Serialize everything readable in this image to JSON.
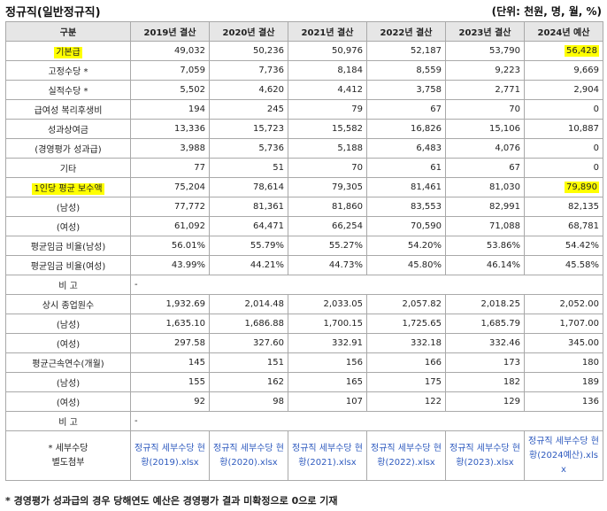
{
  "title": "정규직(일반정규직)",
  "unit": "(단위: 천원, 명, 월, %)",
  "columns": [
    "구분",
    "2019년 결산",
    "2020년 결산",
    "2021년 결산",
    "2022년 결산",
    "2023년 결산",
    "2024년 예산"
  ],
  "rows": [
    {
      "label": "기본급",
      "values": [
        "49,032",
        "50,236",
        "50,976",
        "52,187",
        "53,790",
        "56,428"
      ]
    },
    {
      "label": "고정수당 *",
      "values": [
        "7,059",
        "7,736",
        "8,184",
        "8,559",
        "9,223",
        "9,669"
      ]
    },
    {
      "label": "실적수당 *",
      "values": [
        "5,502",
        "4,620",
        "4,412",
        "3,758",
        "2,771",
        "2,904"
      ]
    },
    {
      "label": "급여성 복리후생비",
      "values": [
        "194",
        "245",
        "79",
        "67",
        "70",
        "0"
      ]
    },
    {
      "label": "성과상여금",
      "values": [
        "13,336",
        "15,723",
        "15,582",
        "16,826",
        "15,106",
        "10,887"
      ]
    },
    {
      "label": "(경영평가 성과급)",
      "values": [
        "3,988",
        "5,736",
        "5,188",
        "6,483",
        "4,076",
        "0"
      ]
    },
    {
      "label": "기타",
      "values": [
        "77",
        "51",
        "70",
        "61",
        "67",
        "0"
      ]
    },
    {
      "label": "1인당 평균 보수액",
      "values": [
        "75,204",
        "78,614",
        "79,305",
        "81,461",
        "81,030",
        "79,890"
      ]
    },
    {
      "label": "(남성)",
      "values": [
        "77,772",
        "81,361",
        "81,860",
        "83,553",
        "82,991",
        "82,135"
      ]
    },
    {
      "label": "(여성)",
      "values": [
        "61,092",
        "64,471",
        "66,254",
        "70,590",
        "71,088",
        "68,781"
      ]
    },
    {
      "label": "평균임금 비율(남성)",
      "values": [
        "56.01%",
        "55.79%",
        "55.27%",
        "54.20%",
        "53.86%",
        "54.42%"
      ]
    },
    {
      "label": "평균임금 비율(여성)",
      "values": [
        "43.99%",
        "44.21%",
        "44.73%",
        "45.80%",
        "46.14%",
        "45.58%"
      ]
    },
    {
      "label": "비 고",
      "remark": "-"
    },
    {
      "label": "상시 종업원수",
      "values": [
        "1,932.69",
        "2,014.48",
        "2,033.05",
        "2,057.82",
        "2,018.25",
        "2,052.00"
      ]
    },
    {
      "label": "(남성)",
      "values": [
        "1,635.10",
        "1,686.88",
        "1,700.15",
        "1,725.65",
        "1,685.79",
        "1,707.00"
      ]
    },
    {
      "label": "(여성)",
      "values": [
        "297.58",
        "327.60",
        "332.91",
        "332.18",
        "332.46",
        "345.00"
      ]
    },
    {
      "label": "평균근속연수(개월)",
      "values": [
        "145",
        "151",
        "156",
        "166",
        "173",
        "180"
      ]
    },
    {
      "label": "(남성)",
      "values": [
        "155",
        "162",
        "165",
        "175",
        "182",
        "189"
      ]
    },
    {
      "label": "(여성)",
      "values": [
        "92",
        "98",
        "107",
        "122",
        "129",
        "136"
      ]
    },
    {
      "label": "비 고",
      "remark": "-"
    }
  ],
  "attachments": {
    "label_line1": "* 세부수당",
    "label_line2": "별도첨부",
    "files": [
      "정규직 세부수당 현황(2019).xlsx",
      "정규직 세부수당 현황(2020).xlsx",
      "정규직 세부수당 현황(2021).xlsx",
      "정규직 세부수당 현황(2022).xlsx",
      "정규직 세부수당 현황(2023).xlsx",
      "정규직 세부수당 현황(2024예산).xlsx"
    ]
  },
  "footnote": "* 경영평가 성과급의 경우 당해연도 예산은 경영평가 결과 미확정으로 0으로 기재",
  "colors": {
    "highlight": "#ffff00",
    "header_bg": "#e6e6e6",
    "border": "#a9a9a9",
    "link": "#2f5bbf"
  }
}
